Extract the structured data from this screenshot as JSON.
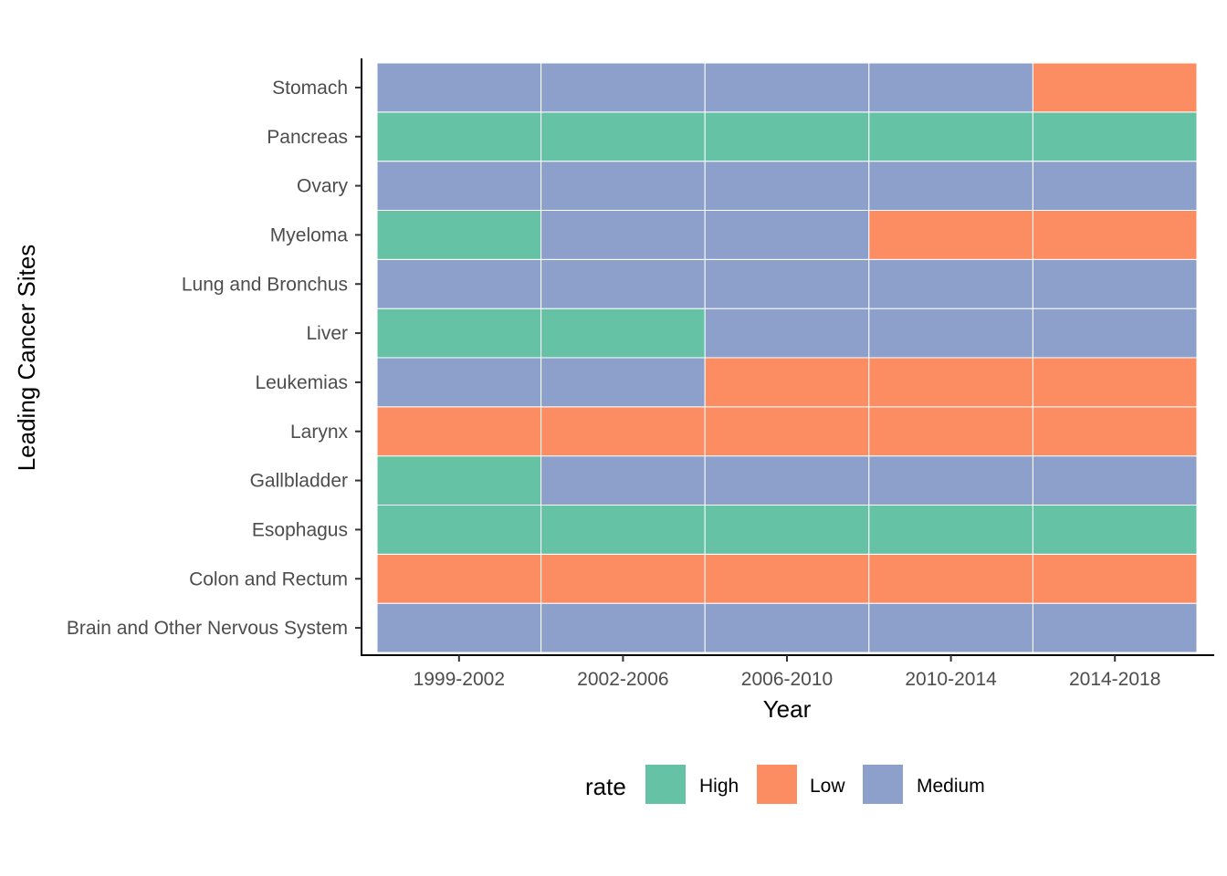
{
  "chart_data": {
    "type": "heatmap",
    "xlabel": "Year",
    "ylabel": "Leading Cancer Sites",
    "x_categories": [
      "1999-2002",
      "2002-2006",
      "2006-2010",
      "2010-2014",
      "2014-2018"
    ],
    "y_categories": [
      "Brain and Other Nervous System",
      "Colon and Rectum",
      "Esophagus",
      "Gallbladder",
      "Larynx",
      "Leukemias",
      "Liver",
      "Lung and Bronchus",
      "Myeloma",
      "Ovary",
      "Pancreas",
      "Stomach"
    ],
    "values": [
      [
        "Medium",
        "Medium",
        "Medium",
        "Medium",
        "Medium"
      ],
      [
        "Low",
        "Low",
        "Low",
        "Low",
        "Low"
      ],
      [
        "High",
        "High",
        "High",
        "High",
        "High"
      ],
      [
        "High",
        "Medium",
        "Medium",
        "Medium",
        "Medium"
      ],
      [
        "Low",
        "Low",
        "Low",
        "Low",
        "Low"
      ],
      [
        "Medium",
        "Medium",
        "Low",
        "Low",
        "Low"
      ],
      [
        "High",
        "High",
        "Medium",
        "Medium",
        "Medium"
      ],
      [
        "Medium",
        "Medium",
        "Medium",
        "Medium",
        "Medium"
      ],
      [
        "High",
        "Medium",
        "Medium",
        "Low",
        "Low"
      ],
      [
        "Medium",
        "Medium",
        "Medium",
        "Medium",
        "Medium"
      ],
      [
        "High",
        "High",
        "High",
        "High",
        "High"
      ],
      [
        "Medium",
        "Medium",
        "Medium",
        "Medium",
        "Low"
      ]
    ],
    "legend": {
      "title": "rate",
      "position": "bottom",
      "items": [
        {
          "label": "High",
          "color": "#66c2a5"
        },
        {
          "label": "Low",
          "color": "#fc8d62"
        },
        {
          "label": "Medium",
          "color": "#8da0cb"
        }
      ]
    },
    "grid": false
  }
}
